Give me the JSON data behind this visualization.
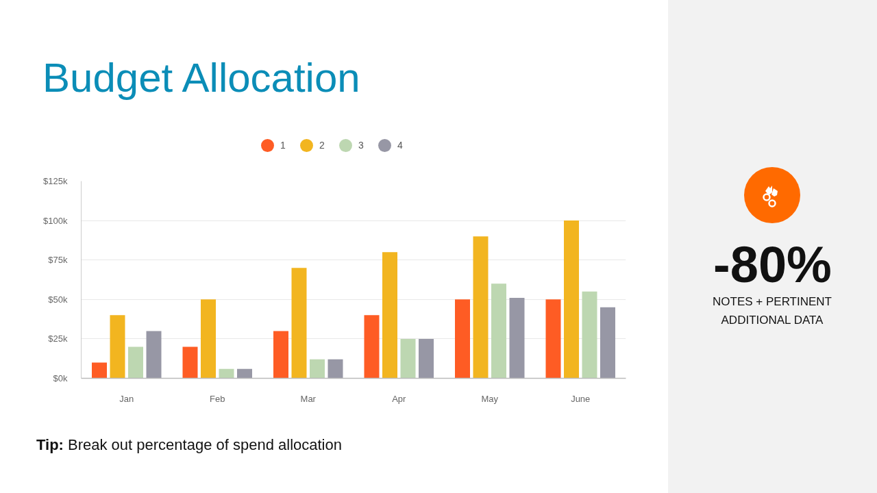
{
  "chart_data": [
    {
      "type": "bar",
      "title": "Budget Allocation",
      "categories": [
        "Jan",
        "Feb",
        "Mar",
        "Apr",
        "May",
        "June"
      ],
      "series": [
        {
          "name": "1",
          "color": "#fe5c24",
          "values": [
            10,
            20,
            30,
            40,
            50,
            50
          ]
        },
        {
          "name": "2",
          "color": "#f2b520",
          "values": [
            40,
            50,
            70,
            80,
            90,
            100
          ]
        },
        {
          "name": "3",
          "color": "#bdd7b1",
          "values": [
            20,
            6,
            12,
            25,
            60,
            55
          ]
        },
        {
          "name": "4",
          "color": "#9797a5",
          "values": [
            30,
            6,
            12,
            25,
            51,
            45
          ]
        }
      ],
      "ylim": [
        0,
        125
      ],
      "yticks": [
        {
          "value": 0,
          "label": "$0k"
        },
        {
          "value": 25,
          "label": "$25k"
        },
        {
          "value": 50,
          "label": "$50k"
        },
        {
          "value": 75,
          "label": "$75k"
        },
        {
          "value": 100,
          "label": "$100k"
        },
        {
          "value": 125,
          "label": "$125k"
        }
      ],
      "grid": "y",
      "legend": "top",
      "annotations": [
        "Tip: Break out percentage of spend allocation"
      ]
    },
    {
      "type": "other",
      "annotations": [
        "-80%",
        "NOTES + PERTINENT ADDITIONAL DATA"
      ]
    }
  ]
}
